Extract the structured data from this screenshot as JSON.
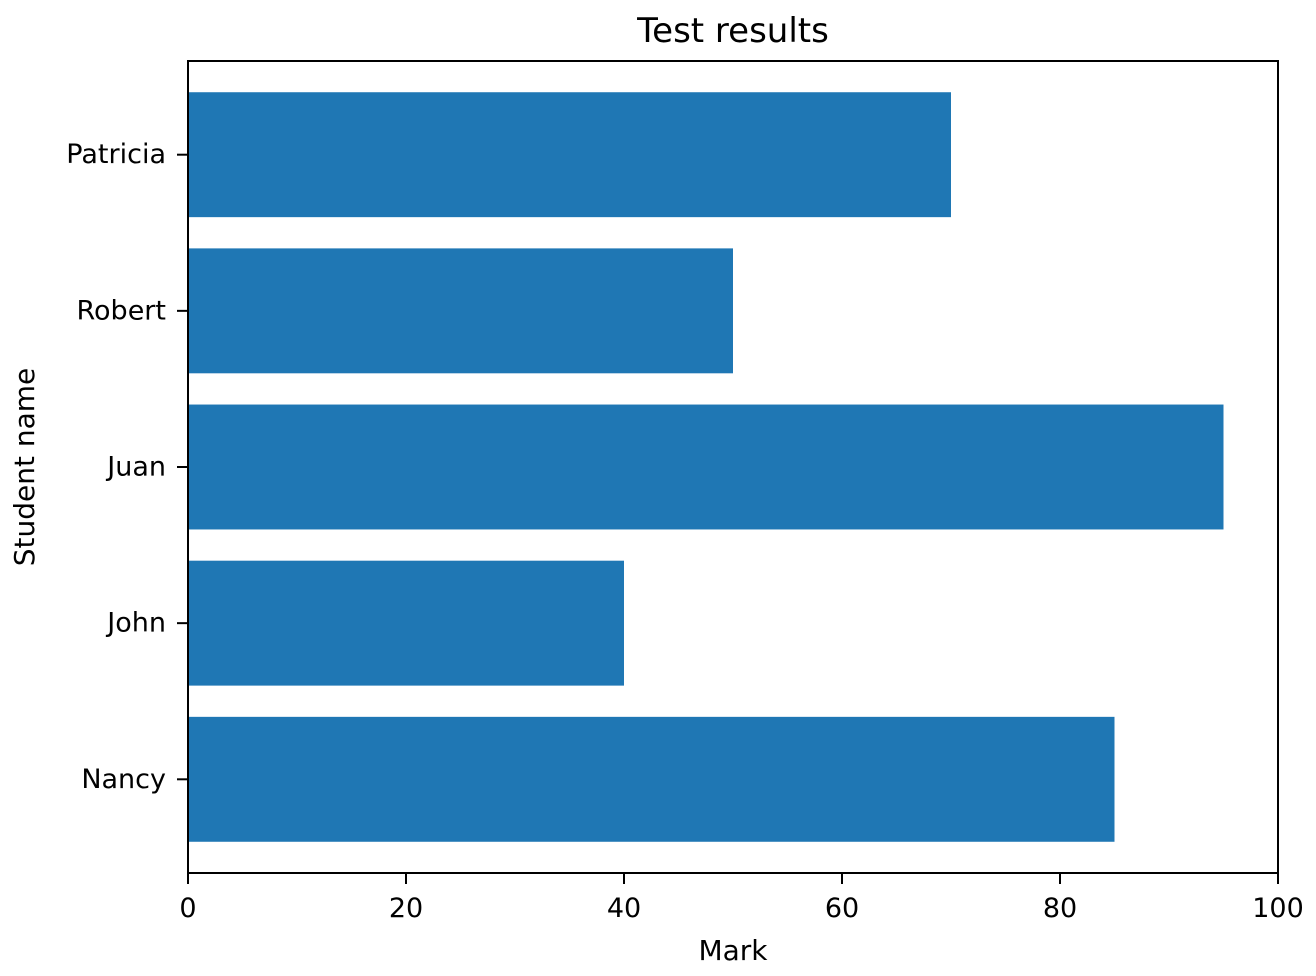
{
  "chart_data": {
    "type": "bar",
    "orientation": "horizontal",
    "title": "Test results",
    "xlabel": "Mark",
    "ylabel": "Student name",
    "categories": [
      "Nancy",
      "John",
      "Juan",
      "Robert",
      "Patricia"
    ],
    "values": [
      85,
      40,
      95,
      50,
      70
    ],
    "xlim": [
      0,
      100
    ],
    "xticks": [
      0,
      20,
      40,
      60,
      80,
      100
    ],
    "grid": false,
    "bar_color": "#1f77b4"
  }
}
